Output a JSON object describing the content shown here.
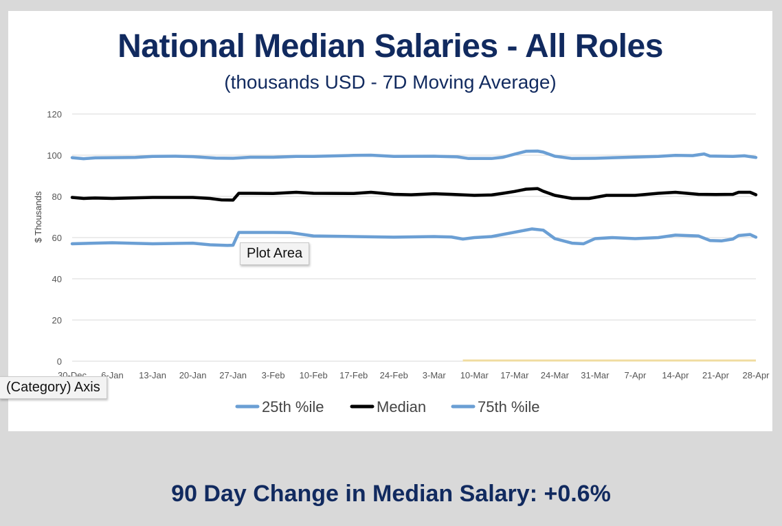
{
  "colors": {
    "p25": "#6b9fd4",
    "median": "#000000",
    "p75": "#6b9fd4",
    "title": "#112a5f",
    "gridline": "#d9d9d9",
    "highlight": "#f0dca0"
  },
  "tooltips": {
    "plot_area": "Plot Area",
    "category_axis": "(Category) Axis"
  },
  "footer": {
    "text": "90 Day Change in Median Salary: +0.6%"
  },
  "chart_data": {
    "type": "line",
    "title": "National Median Salaries - All Roles",
    "subtitle": "(thousands USD - 7D Moving Average)",
    "xlabel": "",
    "ylabel": "$ Thousands",
    "ylim": [
      0,
      120
    ],
    "yticks": [
      0,
      20,
      40,
      60,
      80,
      100,
      120
    ],
    "grid": true,
    "legend": "bottom",
    "xtick_labels": [
      "30-Dec",
      "6-Jan",
      "13-Jan",
      "20-Jan",
      "27-Jan",
      "3-Feb",
      "10-Feb",
      "17-Feb",
      "24-Feb",
      "3-Mar",
      "10-Mar",
      "17-Mar",
      "24-Mar",
      "31-Mar",
      "7-Apr",
      "14-Apr",
      "21-Apr",
      "28-Apr"
    ],
    "x_start": "30-Dec",
    "x_end": "28-Apr",
    "highlight_range": [
      "8-Mar",
      "28-Apr"
    ],
    "series": [
      {
        "name": "25th %ile",
        "color": "#6b9fd4",
        "points": [
          [
            "30-Dec",
            57
          ],
          [
            "6-Jan",
            57.5
          ],
          [
            "13-Jan",
            57
          ],
          [
            "20-Jan",
            57.3
          ],
          [
            "23-Jan",
            56.5
          ],
          [
            "26-Jan",
            56.2
          ],
          [
            "27-Jan",
            56.3
          ],
          [
            "28-Jan",
            62.5
          ],
          [
            "3-Feb",
            62.5
          ],
          [
            "6-Feb",
            62.4
          ],
          [
            "10-Feb",
            60.8
          ],
          [
            "17-Feb",
            60.5
          ],
          [
            "24-Feb",
            60.2
          ],
          [
            "3-Mar",
            60.5
          ],
          [
            "6-Mar",
            60.3
          ],
          [
            "8-Mar",
            59.3
          ],
          [
            "10-Mar",
            60
          ],
          [
            "13-Mar",
            60.5
          ],
          [
            "17-Mar",
            62.6
          ],
          [
            "20-Mar",
            64.2
          ],
          [
            "22-Mar",
            63.6
          ],
          [
            "24-Mar",
            59.5
          ],
          [
            "27-Mar",
            57.3
          ],
          [
            "29-Mar",
            57
          ],
          [
            "31-Mar",
            59.5
          ],
          [
            "3-Apr",
            60
          ],
          [
            "7-Apr",
            59.5
          ],
          [
            "11-Apr",
            60
          ],
          [
            "14-Apr",
            61.2
          ],
          [
            "18-Apr",
            60.8
          ],
          [
            "20-Apr",
            58.6
          ],
          [
            "22-Apr",
            58.4
          ],
          [
            "24-Apr",
            59.3
          ],
          [
            "25-Apr",
            61
          ],
          [
            "27-Apr",
            61.5
          ],
          [
            "28-Apr",
            60.2
          ]
        ]
      },
      {
        "name": "Median",
        "color": "#000000",
        "points": [
          [
            "30-Dec",
            79.5
          ],
          [
            "1-Jan",
            79
          ],
          [
            "3-Jan",
            79.2
          ],
          [
            "6-Jan",
            79
          ],
          [
            "13-Jan",
            79.5
          ],
          [
            "20-Jan",
            79.5
          ],
          [
            "23-Jan",
            79
          ],
          [
            "25-Jan",
            78.3
          ],
          [
            "27-Jan",
            78.2
          ],
          [
            "28-Jan",
            81.5
          ],
          [
            "30-Jan",
            81.5
          ],
          [
            "3-Feb",
            81.4
          ],
          [
            "7-Feb",
            82
          ],
          [
            "10-Feb",
            81.5
          ],
          [
            "17-Feb",
            81.4
          ],
          [
            "20-Feb",
            82
          ],
          [
            "24-Feb",
            81
          ],
          [
            "27-Feb",
            80.8
          ],
          [
            "3-Mar",
            81.3
          ],
          [
            "6-Mar",
            81
          ],
          [
            "10-Mar",
            80.5
          ],
          [
            "13-Mar",
            80.7
          ],
          [
            "15-Mar",
            81.5
          ],
          [
            "17-Mar",
            82.4
          ],
          [
            "19-Mar",
            83.5
          ],
          [
            "21-Mar",
            83.8
          ],
          [
            "22-Mar",
            82.5
          ],
          [
            "24-Mar",
            80.5
          ],
          [
            "27-Mar",
            79
          ],
          [
            "30-Mar",
            79
          ],
          [
            "2-Apr",
            80.5
          ],
          [
            "7-Apr",
            80.5
          ],
          [
            "11-Apr",
            81.5
          ],
          [
            "14-Apr",
            82
          ],
          [
            "18-Apr",
            81
          ],
          [
            "21-Apr",
            80.9
          ],
          [
            "24-Apr",
            81
          ],
          [
            "25-Apr",
            82
          ],
          [
            "27-Apr",
            82
          ],
          [
            "28-Apr",
            80.8
          ]
        ]
      },
      {
        "name": "75th %ile",
        "color": "#6b9fd4",
        "points": [
          [
            "30-Dec",
            98.8
          ],
          [
            "1-Jan",
            98.3
          ],
          [
            "3-Jan",
            98.7
          ],
          [
            "6-Jan",
            98.8
          ],
          [
            "10-Jan",
            98.9
          ],
          [
            "13-Jan",
            99.4
          ],
          [
            "17-Jan",
            99.5
          ],
          [
            "20-Jan",
            99.3
          ],
          [
            "24-Jan",
            98.6
          ],
          [
            "27-Jan",
            98.5
          ],
          [
            "30-Jan",
            99
          ],
          [
            "3-Feb",
            99
          ],
          [
            "7-Feb",
            99.4
          ],
          [
            "10-Feb",
            99.4
          ],
          [
            "17-Feb",
            99.9
          ],
          [
            "20-Feb",
            100
          ],
          [
            "24-Feb",
            99.4
          ],
          [
            "3-Mar",
            99.5
          ],
          [
            "7-Mar",
            99.2
          ],
          [
            "9-Mar",
            98.4
          ],
          [
            "13-Mar",
            98.4
          ],
          [
            "15-Mar",
            99
          ],
          [
            "17-Mar",
            100.5
          ],
          [
            "19-Mar",
            101.9
          ],
          [
            "21-Mar",
            102
          ],
          [
            "22-Mar",
            101.5
          ],
          [
            "24-Mar",
            99.5
          ],
          [
            "27-Mar",
            98.4
          ],
          [
            "31-Mar",
            98.5
          ],
          [
            "7-Apr",
            99.1
          ],
          [
            "11-Apr",
            99.4
          ],
          [
            "14-Apr",
            99.9
          ],
          [
            "17-Apr",
            99.8
          ],
          [
            "19-Apr",
            100.6
          ],
          [
            "20-Apr",
            99.6
          ],
          [
            "24-Apr",
            99.4
          ],
          [
            "26-Apr",
            99.7
          ],
          [
            "28-Apr",
            98.9
          ]
        ]
      }
    ]
  }
}
